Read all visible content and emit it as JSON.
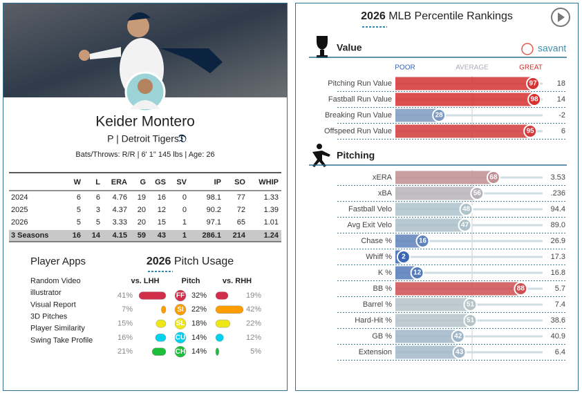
{
  "player": {
    "name": "Keider Montero",
    "team_line": "P | Detroit Tigers",
    "bio": "Bats/Throws: R/R | 6' 1\" 145 lbs | Age: 26"
  },
  "stats": {
    "columns": [
      "W",
      "L",
      "ERA",
      "G",
      "GS",
      "SV",
      "IP",
      "SO",
      "WHIP"
    ],
    "rows": [
      {
        "season": "2024",
        "values": [
          6,
          6,
          4.76,
          19,
          16,
          0,
          98.1,
          77,
          1.33
        ]
      },
      {
        "season": "2025",
        "values": [
          5,
          3,
          4.37,
          20,
          12,
          0,
          90.2,
          72,
          1.39
        ]
      },
      {
        "season": "2026",
        "values": [
          5,
          5,
          3.33,
          20,
          15,
          1,
          97.1,
          65,
          1.01
        ]
      },
      {
        "season": "3 Seasons",
        "values": [
          16,
          14,
          4.15,
          59,
          43,
          1,
          286.1,
          214,
          1.24
        ]
      }
    ]
  },
  "player_apps": {
    "title": "Player Apps",
    "items": [
      "Random Video",
      "illustrator",
      "Visual Report",
      "3D Pitches",
      "Player Similarity",
      "Swing Take Profile"
    ]
  },
  "pitch_usage": {
    "year": "2026",
    "title": "Pitch Usage",
    "columns": [
      "vs. LHH",
      "Pitch",
      "vs. RHH"
    ],
    "pitches": [
      {
        "code": "FF",
        "color": "#d22d49",
        "usage": 32,
        "usage_label": "32%",
        "lhh": 41,
        "lhh_label": "41%",
        "rhh": 19,
        "rhh_label": "19%"
      },
      {
        "code": "SI",
        "color": "#fe9d00",
        "usage": 22,
        "usage_label": "22%",
        "lhh": 7,
        "lhh_label": "7%",
        "rhh": 42,
        "rhh_label": "42%"
      },
      {
        "code": "SL",
        "color": "#eee716",
        "usage": 18,
        "usage_label": "18%",
        "lhh": 15,
        "lhh_label": "15%",
        "rhh": 22,
        "rhh_label": "22%"
      },
      {
        "code": "CU",
        "color": "#00d1ed",
        "usage": 14,
        "usage_label": "14%",
        "lhh": 16,
        "lhh_label": "16%",
        "rhh": 12,
        "rhh_label": "12%"
      },
      {
        "code": "CH",
        "color": "#1dbe3a",
        "usage": 14,
        "usage_label": "14%",
        "lhh": 21,
        "lhh_label": "21%",
        "rhh": 5,
        "rhh_label": "5%"
      }
    ]
  },
  "rankings": {
    "year": "2026",
    "title": "MLB Percentile Rankings",
    "brand": "savant",
    "scale": [
      "POOR",
      "AVERAGE",
      "GREAT"
    ],
    "sections": [
      {
        "title": "Value",
        "metrics": [
          {
            "name": "Pitching Run Value",
            "percentile": 97,
            "stat": "18"
          },
          {
            "name": "Fastball Run Value",
            "percentile": 98,
            "stat": "14"
          },
          {
            "name": "Breaking Run Value",
            "percentile": 28,
            "stat": "-2"
          },
          {
            "name": "Offspeed Run Value",
            "percentile": 95,
            "stat": "6"
          }
        ]
      },
      {
        "title": "Pitching",
        "metrics": [
          {
            "name": "xERA",
            "percentile": 68,
            "stat": "3.53"
          },
          {
            "name": "xBA",
            "percentile": 56,
            "stat": ".236"
          },
          {
            "name": "Fastball Velo",
            "percentile": 48,
            "stat": "94.4"
          },
          {
            "name": "Avg Exit Velo",
            "percentile": 47,
            "stat": "89.0"
          },
          {
            "name": "Chase %",
            "percentile": 16,
            "stat": "26.9"
          },
          {
            "name": "Whiff %",
            "percentile": 2,
            "stat": "17.3"
          },
          {
            "name": "K %",
            "percentile": 12,
            "stat": "16.8"
          },
          {
            "name": "BB %",
            "percentile": 88,
            "stat": "5.7"
          },
          {
            "name": "Barrel %",
            "percentile": 51,
            "stat": "7.4"
          },
          {
            "name": "Hard-Hit %",
            "percentile": 51,
            "stat": "38.6"
          },
          {
            "name": "GB %",
            "percentile": 42,
            "stat": "40.9"
          },
          {
            "name": "Extension",
            "percentile": 43,
            "stat": "6.4"
          }
        ]
      }
    ]
  }
}
